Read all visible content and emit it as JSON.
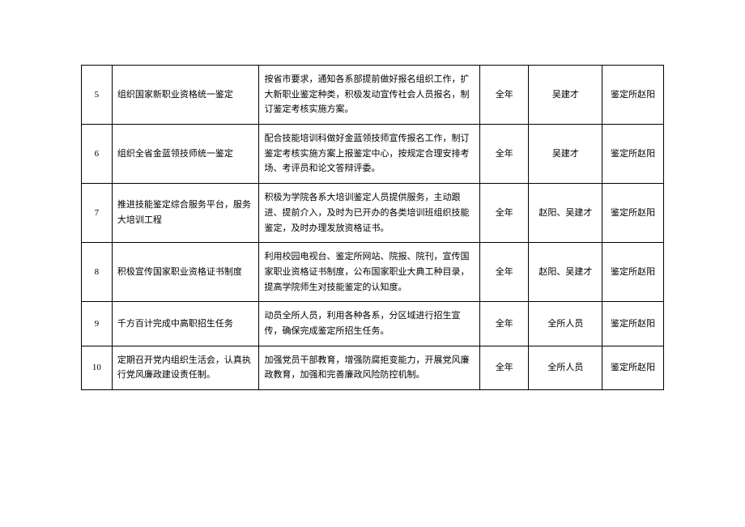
{
  "table": {
    "columns": [
      {
        "key": "num",
        "class": "col-num"
      },
      {
        "key": "task",
        "class": "col-task"
      },
      {
        "key": "desc",
        "class": "col-desc"
      },
      {
        "key": "time",
        "class": "col-time"
      },
      {
        "key": "person",
        "class": "col-person"
      },
      {
        "key": "dept",
        "class": "col-dept"
      }
    ],
    "rows": [
      {
        "num": "5",
        "task": "组织国家新职业资格统一鉴定",
        "desc": "按省市要求，通知各系部提前做好报名组织工作，扩大新职业鉴定种类，积极发动宣传社会人员报名，制订鉴定考核实施方案。",
        "time": "全年",
        "person": "吴建才",
        "dept": "鉴定所赵阳"
      },
      {
        "num": "6",
        "task": "组织全省金蓝领技师统一鉴定",
        "desc": "配合技能培训科做好金蓝领技师宣传报名工作，制订鉴定考核实施方案上报鉴定中心，按规定合理安排考场、考评员和论文答辩评委。",
        "time": "全年",
        "person": "吴建才",
        "dept": "鉴定所赵阳"
      },
      {
        "num": "7",
        "task": "推进技能鉴定综合服务平台，服务大培训工程",
        "desc": "积极为学院各系大培训鉴定人员提供服务，主动跟进、提前介入，及时为已开办的各类培训班组织技能鉴定，及时办理发放资格证书。",
        "time": "全年",
        "person": "赵阳、吴建才",
        "dept": "鉴定所赵阳"
      },
      {
        "num": "8",
        "task": "积极宣传国家职业资格证书制度",
        "desc": "利用校园电视台、鉴定所网站、院报、院刊，宣传国家职业资格证书制度，公布国家职业大典工种目录，提高学院师生对技能鉴定的认知度。",
        "time": "全年",
        "person": "赵阳、吴建才",
        "dept": "鉴定所赵阳"
      },
      {
        "num": "9",
        "task": "千方百计完成中高职招生任务",
        "desc": "动员全所人员，利用各种各系，分区域进行招生宣传，确保完成鉴定所招生任务。",
        "time": "全年",
        "person": "全所人员",
        "dept": "鉴定所赵阳"
      },
      {
        "num": "10",
        "task": "定期召开党内组织生活会，认真执行党风廉政建设责任制。",
        "desc": "加强党员干部教育，增强防腐拒变能力，开展党风廉政教育，加强和完善廉政风险防控机制。",
        "time": "全年",
        "person": "全所人员",
        "dept": "鉴定所赵阳"
      }
    ],
    "style": {
      "border_color": "#000000",
      "text_color": "#000000",
      "background_color": "#ffffff",
      "font_size": 11,
      "line_height": 1.7
    }
  }
}
